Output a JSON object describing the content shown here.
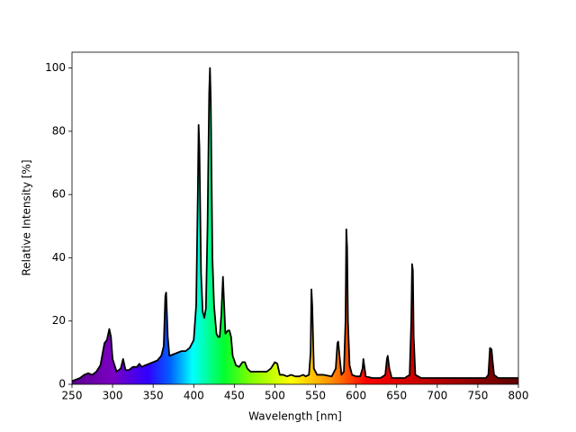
{
  "chart_data": {
    "type": "area",
    "x_label": "Wavelength [nm]",
    "y_label": "Relative Intensity [%]",
    "line_color": "#000000",
    "x": [
      250,
      260,
      265,
      270,
      275,
      280,
      285,
      290,
      293,
      296,
      298,
      300,
      305,
      310,
      313,
      316,
      320,
      325,
      330,
      333,
      336,
      340,
      345,
      350,
      355,
      360,
      363,
      365,
      366,
      368,
      370,
      375,
      380,
      385,
      390,
      395,
      400,
      403,
      405,
      406,
      407,
      409,
      411,
      413,
      415,
      417,
      419,
      420,
      421,
      423,
      425,
      428,
      430,
      432,
      434,
      436,
      437,
      439,
      442,
      444,
      446,
      448,
      452,
      456,
      460,
      463,
      466,
      470,
      480,
      490,
      495,
      500,
      503,
      506,
      510,
      515,
      520,
      525,
      530,
      535,
      538,
      542,
      544,
      545,
      546,
      548,
      552,
      560,
      570,
      575,
      577,
      578,
      580,
      582,
      585,
      587,
      588,
      589,
      590,
      592,
      595,
      600,
      605,
      608,
      609,
      610,
      612,
      620,
      630,
      636,
      638,
      639,
      641,
      644,
      650,
      660,
      666,
      668,
      669,
      670,
      671,
      673,
      680,
      700,
      720,
      740,
      750,
      760,
      763,
      765,
      767,
      768,
      770,
      775,
      790,
      800
    ],
    "values": [
      1,
      2,
      3,
      3.5,
      3,
      4,
      6,
      13,
      14,
      17.5,
      15,
      8,
      4,
      5,
      8,
      4.5,
      4.5,
      5.5,
      5.5,
      6.5,
      5.5,
      6,
      6.5,
      7,
      7.5,
      9,
      12,
      28,
      29,
      15,
      9,
      9.5,
      10,
      10.5,
      10.5,
      11.5,
      14,
      25,
      60,
      82,
      75,
      35,
      23,
      21,
      24,
      50,
      92,
      100,
      90,
      40,
      25,
      16,
      15,
      15,
      22,
      34,
      28,
      16,
      17,
      17,
      15,
      9,
      6,
      5.5,
      7,
      7,
      5,
      4,
      4,
      4,
      5,
      7,
      6.5,
      3,
      3,
      2.5,
      3,
      2.5,
      2.5,
      3,
      2.5,
      3,
      10,
      30,
      25,
      5,
      3,
      3,
      2.5,
      5,
      13,
      13.5,
      8,
      3,
      4,
      20,
      49,
      43,
      20,
      6,
      3,
      2.5,
      2.5,
      5,
      8,
      6,
      2.5,
      2,
      2,
      3,
      8,
      9,
      5,
      2,
      2,
      2,
      3,
      20,
      38,
      36,
      15,
      3,
      2,
      2,
      2,
      2,
      2,
      2,
      3,
      11.5,
      11,
      8,
      3,
      2,
      2,
      2
    ],
    "xlim": [
      250,
      800
    ],
    "ylim": [
      0,
      105
    ],
    "xticks": [
      250,
      300,
      350,
      400,
      450,
      500,
      550,
      600,
      650,
      700,
      750,
      800
    ],
    "yticks": [
      0,
      20,
      40,
      60,
      80,
      100
    ]
  }
}
